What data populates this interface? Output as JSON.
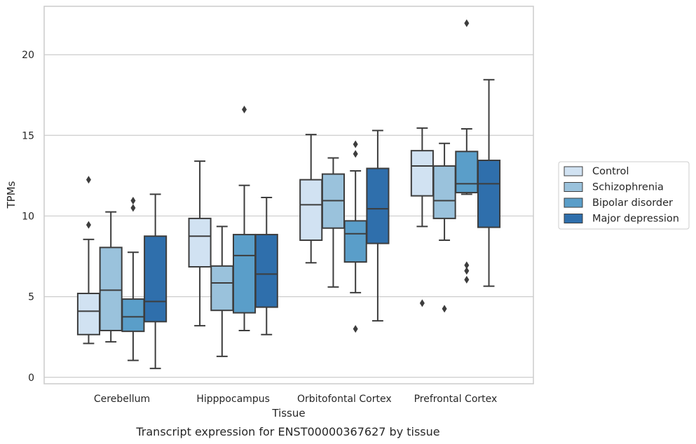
{
  "chart_data": {
    "type": "box",
    "caption": "Transcript expression for ENST00000367627 by tissue",
    "xlabel": "Tissue",
    "ylabel": "TPMs",
    "ylim": [
      -0.4,
      23.0
    ],
    "yticks": [
      0,
      5,
      10,
      15,
      20
    ],
    "grid": "horizontal",
    "legend_position": "right",
    "categories": [
      "Cerebellum",
      "Hipppocampus",
      "Orbitofontal Cortex",
      "Prefrontal Cortex"
    ],
    "series": [
      {
        "name": "Control",
        "color": "#d1e2f2",
        "boxes": [
          {
            "whisker_low": 2.1,
            "q1": 2.65,
            "median": 4.1,
            "q3": 5.2,
            "whisker_high": 8.55,
            "outliers": [
              9.45,
              12.25
            ]
          },
          {
            "whisker_low": 3.2,
            "q1": 6.85,
            "median": 8.75,
            "q3": 9.85,
            "whisker_high": 13.4,
            "outliers": []
          },
          {
            "whisker_low": 7.1,
            "q1": 8.5,
            "median": 10.7,
            "q3": 12.25,
            "whisker_high": 15.05,
            "outliers": []
          },
          {
            "whisker_low": 9.35,
            "q1": 11.25,
            "median": 13.1,
            "q3": 14.05,
            "whisker_high": 15.45,
            "outliers": [
              4.6
            ]
          }
        ]
      },
      {
        "name": "Schizophrenia",
        "color": "#9ac2dc",
        "boxes": [
          {
            "whisker_low": 2.2,
            "q1": 2.9,
            "median": 5.4,
            "q3": 8.05,
            "whisker_high": 10.25,
            "outliers": []
          },
          {
            "whisker_low": 1.3,
            "q1": 4.15,
            "median": 5.85,
            "q3": 6.9,
            "whisker_high": 9.35,
            "outliers": []
          },
          {
            "whisker_low": 5.6,
            "q1": 9.25,
            "median": 10.95,
            "q3": 12.6,
            "whisker_high": 13.6,
            "outliers": []
          },
          {
            "whisker_low": 8.5,
            "q1": 9.85,
            "median": 10.95,
            "q3": 13.1,
            "whisker_high": 14.5,
            "outliers": [
              4.25
            ]
          }
        ]
      },
      {
        "name": "Bipolar disorder",
        "color": "#5a9ec9",
        "boxes": [
          {
            "whisker_low": 1.05,
            "q1": 2.85,
            "median": 3.75,
            "q3": 4.85,
            "whisker_high": 7.75,
            "outliers": [
              10.5,
              10.95
            ]
          },
          {
            "whisker_low": 2.9,
            "q1": 4.0,
            "median": 7.55,
            "q3": 8.85,
            "whisker_high": 11.9,
            "outliers": [
              16.6
            ]
          },
          {
            "whisker_low": 5.25,
            "q1": 7.15,
            "median": 8.9,
            "q3": 9.7,
            "whisker_high": 12.8,
            "outliers": [
              3.0,
              13.85,
              14.45
            ]
          },
          {
            "whisker_low": 11.35,
            "q1": 11.45,
            "median": 12.0,
            "q3": 14.0,
            "whisker_high": 15.4,
            "outliers": [
              6.05,
              6.6,
              6.95,
              21.95
            ]
          }
        ]
      },
      {
        "name": "Major depression",
        "color": "#2f6fac",
        "boxes": [
          {
            "whisker_low": 0.55,
            "q1": 3.45,
            "median": 4.7,
            "q3": 8.75,
            "whisker_high": 11.35,
            "outliers": []
          },
          {
            "whisker_low": 2.65,
            "q1": 4.35,
            "median": 6.4,
            "q3": 8.85,
            "whisker_high": 11.15,
            "outliers": []
          },
          {
            "whisker_low": 3.5,
            "q1": 8.3,
            "median": 10.45,
            "q3": 12.95,
            "whisker_high": 15.3,
            "outliers": []
          },
          {
            "whisker_low": 5.65,
            "q1": 9.3,
            "median": 12.0,
            "q3": 13.45,
            "whisker_high": 18.45,
            "outliers": []
          }
        ]
      }
    ]
  }
}
